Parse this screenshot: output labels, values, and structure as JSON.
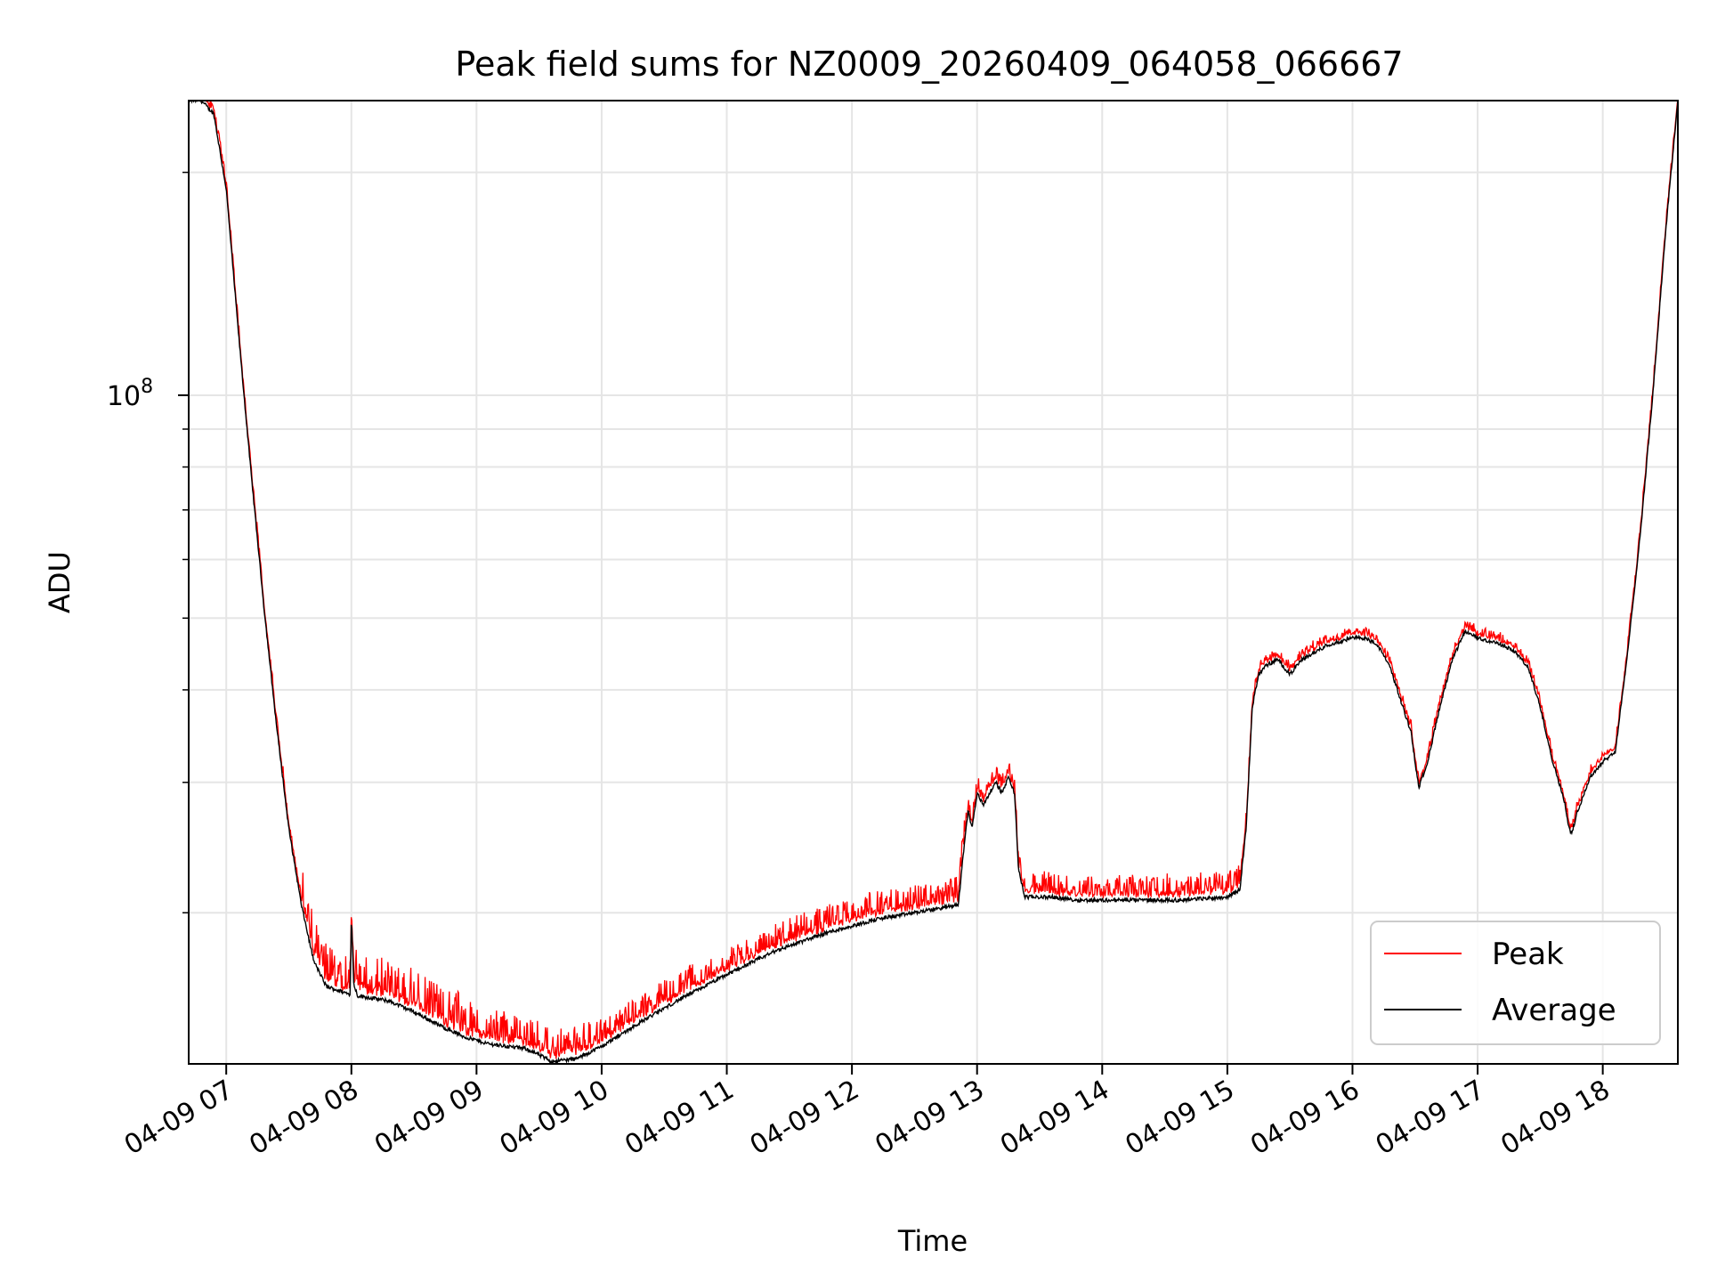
{
  "chart_data": {
    "type": "line",
    "title": "Peak field sums for NZ0009_20260409_064058_066667",
    "xlabel": "Time",
    "ylabel": "ADU",
    "yscale": "log",
    "ylim": [
      12500000,
      250000000
    ],
    "xlim_hours": [
      6.7,
      18.6
    ],
    "grid": true,
    "legend_position": "lower-right",
    "y_major_tick_labels": [
      {
        "value": 100000000,
        "base": "10",
        "exponent": "8"
      }
    ],
    "y_minor_ticks": [
      20000000,
      30000000,
      40000000,
      50000000,
      60000000,
      70000000,
      80000000,
      90000000,
      200000000
    ],
    "x_ticks": [
      {
        "hour": 7,
        "label": "04-09 07"
      },
      {
        "hour": 8,
        "label": "04-09 08"
      },
      {
        "hour": 9,
        "label": "04-09 09"
      },
      {
        "hour": 10,
        "label": "04-09 10"
      },
      {
        "hour": 11,
        "label": "04-09 11"
      },
      {
        "hour": 12,
        "label": "04-09 12"
      },
      {
        "hour": 13,
        "label": "04-09 13"
      },
      {
        "hour": 14,
        "label": "04-09 14"
      },
      {
        "hour": 15,
        "label": "04-09 15"
      },
      {
        "hour": 16,
        "label": "04-09 16"
      },
      {
        "hour": 17,
        "label": "04-09 17"
      },
      {
        "hour": 18,
        "label": "04-09 18"
      }
    ],
    "series": [
      {
        "name": "Peak",
        "color": "#ff0000",
        "role": "peak"
      },
      {
        "name": "Average",
        "color": "#000000",
        "role": "average"
      }
    ],
    "average_curve": {
      "hours": [
        6.7,
        6.8,
        6.9,
        7.0,
        7.1,
        7.2,
        7.3,
        7.4,
        7.5,
        7.6,
        7.7,
        7.8,
        7.95,
        7.99,
        8.0,
        8.02,
        8.05,
        8.3,
        8.5,
        8.7,
        8.9,
        9.1,
        9.4,
        9.6,
        9.8,
        10.0,
        10.3,
        10.6,
        11.0,
        11.4,
        11.8,
        12.2,
        12.5,
        12.85,
        12.9,
        12.93,
        12.96,
        13.0,
        13.05,
        13.1,
        13.15,
        13.2,
        13.25,
        13.3,
        13.33,
        13.38,
        13.6,
        13.8,
        14.0,
        14.3,
        14.6,
        15.0,
        15.1,
        15.15,
        15.2,
        15.25,
        15.3,
        15.4,
        15.5,
        15.6,
        15.8,
        16.0,
        16.1,
        16.2,
        16.3,
        16.4,
        16.47,
        16.5,
        16.53,
        16.6,
        16.7,
        16.8,
        16.9,
        17.0,
        17.1,
        17.2,
        17.3,
        17.4,
        17.5,
        17.6,
        17.65,
        17.7,
        17.72,
        17.75,
        17.8,
        17.9,
        18.0,
        18.1,
        18.2,
        18.3,
        18.4,
        18.5,
        18.6
      ],
      "values": [
        250000000,
        250000000,
        240000000,
        190000000,
        120000000,
        78000000,
        52000000,
        36000000,
        26000000,
        20500000,
        17200000,
        15900000,
        15600000,
        15500000,
        19800000,
        16000000,
        15450000,
        15200000,
        14700000,
        14100000,
        13600000,
        13300000,
        13100000,
        12600000,
        12700000,
        13200000,
        14200000,
        15200000,
        16500000,
        17800000,
        18800000,
        19600000,
        20000000,
        20500000,
        25000000,
        27500000,
        26000000,
        29000000,
        28000000,
        29000000,
        30000000,
        29000000,
        30500000,
        29000000,
        23000000,
        21000000,
        21000000,
        20800000,
        20800000,
        20800000,
        20800000,
        21000000,
        21500000,
        26000000,
        38000000,
        42000000,
        43000000,
        44000000,
        42000000,
        44000000,
        46000000,
        47000000,
        47000000,
        46000000,
        43000000,
        38000000,
        35000000,
        32000000,
        29500000,
        32000000,
        38000000,
        44000000,
        48000000,
        47000000,
        46500000,
        46000000,
        45000000,
        43000000,
        38000000,
        32000000,
        30000000,
        28000000,
        26500000,
        25500000,
        27500000,
        30500000,
        32000000,
        33000000,
        45000000,
        65000000,
        100000000,
        165000000,
        250000000
      ]
    },
    "peak_noise": [
      {
        "from": 6.7,
        "to": 7.6,
        "amplitude": 0.03
      },
      {
        "from": 7.6,
        "to": 9.0,
        "amplitude": 0.13
      },
      {
        "from": 9.0,
        "to": 10.0,
        "amplitude": 0.1
      },
      {
        "from": 10.0,
        "to": 12.9,
        "amplitude": 0.08
      },
      {
        "from": 12.9,
        "to": 13.4,
        "amplitude": 0.05
      },
      {
        "from": 13.4,
        "to": 15.15,
        "amplitude": 0.07
      },
      {
        "from": 15.15,
        "to": 18.6,
        "amplitude": 0.025
      }
    ]
  }
}
